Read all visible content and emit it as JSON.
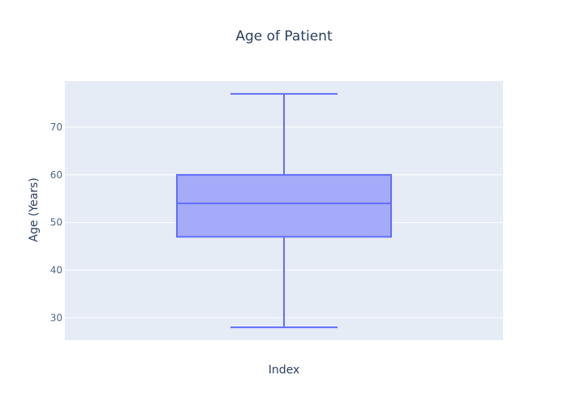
{
  "chart_data": {
    "type": "box",
    "title": "Age of Patient",
    "xlabel": "Index",
    "ylabel": "Age (Years)",
    "ylim": [
      25.3,
      79.7
    ],
    "yticks": [
      30,
      40,
      50,
      60,
      70
    ],
    "grid": true,
    "legend": "none",
    "box": {
      "min": 28,
      "q1": 47,
      "median": 54,
      "q3": 60,
      "max": 77
    },
    "colors": {
      "plot_bg": "#e5ecf6",
      "grid": "#ffffff",
      "box_line": "#636efa",
      "box_fill": "#a5abf9"
    }
  }
}
